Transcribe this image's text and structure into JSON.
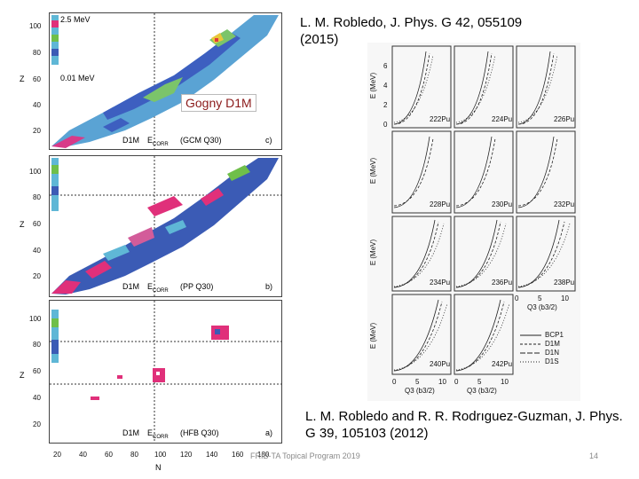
{
  "slide": {
    "citation_top": "L. M. Robledo, J. Phys. G 42, 055109 (2015)",
    "citation_bottom": "L. M. Robledo and R. R. Rodrıguez-Guzman, J. Phys. G 39, 105103 (2012)",
    "gogny_label": "Gogny D1M",
    "footer_text": "FRIB-TA Topical Program 2019",
    "page_number": "14"
  },
  "left_figure": {
    "axis_z_label": "Z",
    "axis_n_label": "N",
    "z_ticks": [
      "100",
      "80",
      "60",
      "40",
      "20"
    ],
    "n_ticks": [
      "20",
      "40",
      "60",
      "80",
      "100",
      "120",
      "140",
      "160",
      "180"
    ],
    "colorbar_max": "2.5 MeV",
    "colorbar_min": "0.01 MeV",
    "panels": [
      {
        "model": "D1M",
        "quantity": "E",
        "subscript": "CORR",
        "method": "(GCM Q30)",
        "tag": "c)"
      },
      {
        "model": "D1M",
        "quantity": "E",
        "subscript": "CORR",
        "method": "(PP Q30)",
        "tag": "b)"
      },
      {
        "model": "D1M",
        "quantity": "E",
        "subscript": "CORR",
        "method": "(HFB Q30)",
        "tag": "a)"
      }
    ]
  },
  "right_figure": {
    "y_label": "E (MeV)",
    "x_label": "Q3 (b3/2)",
    "y_ticks": [
      "6",
      "4",
      "2",
      "0"
    ],
    "x_ticks": [
      "0",
      "5",
      "10"
    ],
    "nuclei": [
      "222Pu",
      "224Pu",
      "226Pu",
      "228Pu",
      "230Pu",
      "232Pu",
      "234Pu",
      "236Pu",
      "238Pu",
      "240Pu",
      "242Pu"
    ],
    "legend": [
      "BCP1",
      "D1M",
      "D1N",
      "D1S"
    ]
  },
  "colors": {
    "blue": "#3b5bb5",
    "cyan": "#5fb7d6",
    "magenta": "#e0307a",
    "green": "#6fbf4a",
    "gogny_text": "#8b1a1a"
  }
}
